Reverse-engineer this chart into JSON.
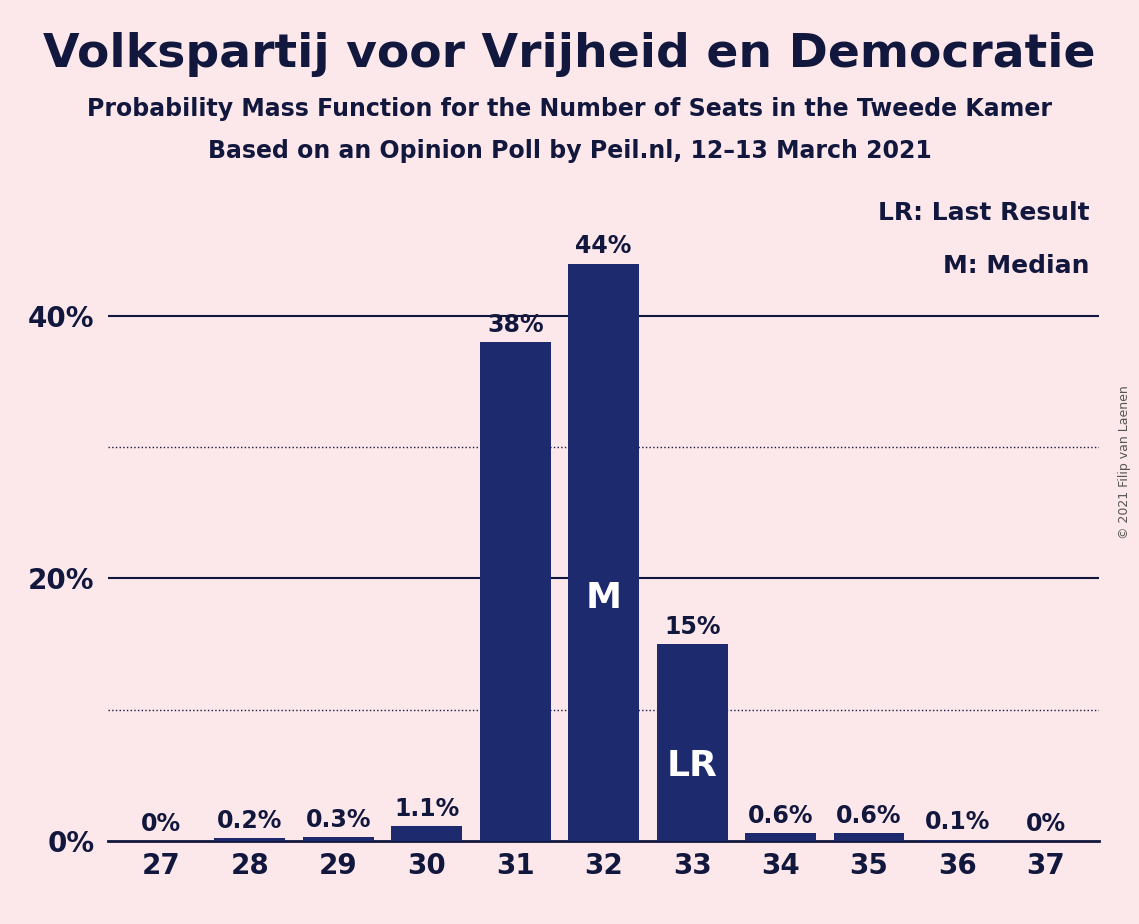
{
  "title": "Volkspartij voor Vrijheid en Democratie",
  "subtitle1": "Probability Mass Function for the Number of Seats in the Tweede Kamer",
  "subtitle2": "Based on an Opinion Poll by Peil.nl, 12–13 March 2021",
  "copyright": "© 2021 Filip van Laenen",
  "categories": [
    27,
    28,
    29,
    30,
    31,
    32,
    33,
    34,
    35,
    36,
    37
  ],
  "values": [
    0.0,
    0.2,
    0.3,
    1.1,
    38.0,
    44.0,
    15.0,
    0.6,
    0.6,
    0.1,
    0.0
  ],
  "labels": [
    "0%",
    "0.2%",
    "0.3%",
    "1.1%",
    "38%",
    "44%",
    "15%",
    "0.6%",
    "0.6%",
    "0.1%",
    "0%"
  ],
  "bar_color": "#1e2a6e",
  "background_color": "#fce8ea",
  "title_color": "#12173d",
  "median_bar": 32,
  "lr_bar": 33,
  "median_label": "M",
  "lr_label": "LR",
  "legend_text": [
    "LR: Last Result",
    "M: Median"
  ],
  "ylim": [
    0,
    50
  ],
  "yticks": [
    0,
    20,
    40
  ],
  "ytick_labels": [
    "0%",
    "20%",
    "40%"
  ],
  "solid_gridlines": [
    20,
    40
  ],
  "dotted_gridlines": [
    10,
    30
  ],
  "title_fontsize": 34,
  "subtitle_fontsize": 17,
  "subtitle2_fontsize": 17,
  "axis_tick_fontsize": 20,
  "bar_label_fontsize": 17,
  "legend_fontsize": 18,
  "inside_label_fontsize": 26,
  "copyright_fontsize": 9
}
